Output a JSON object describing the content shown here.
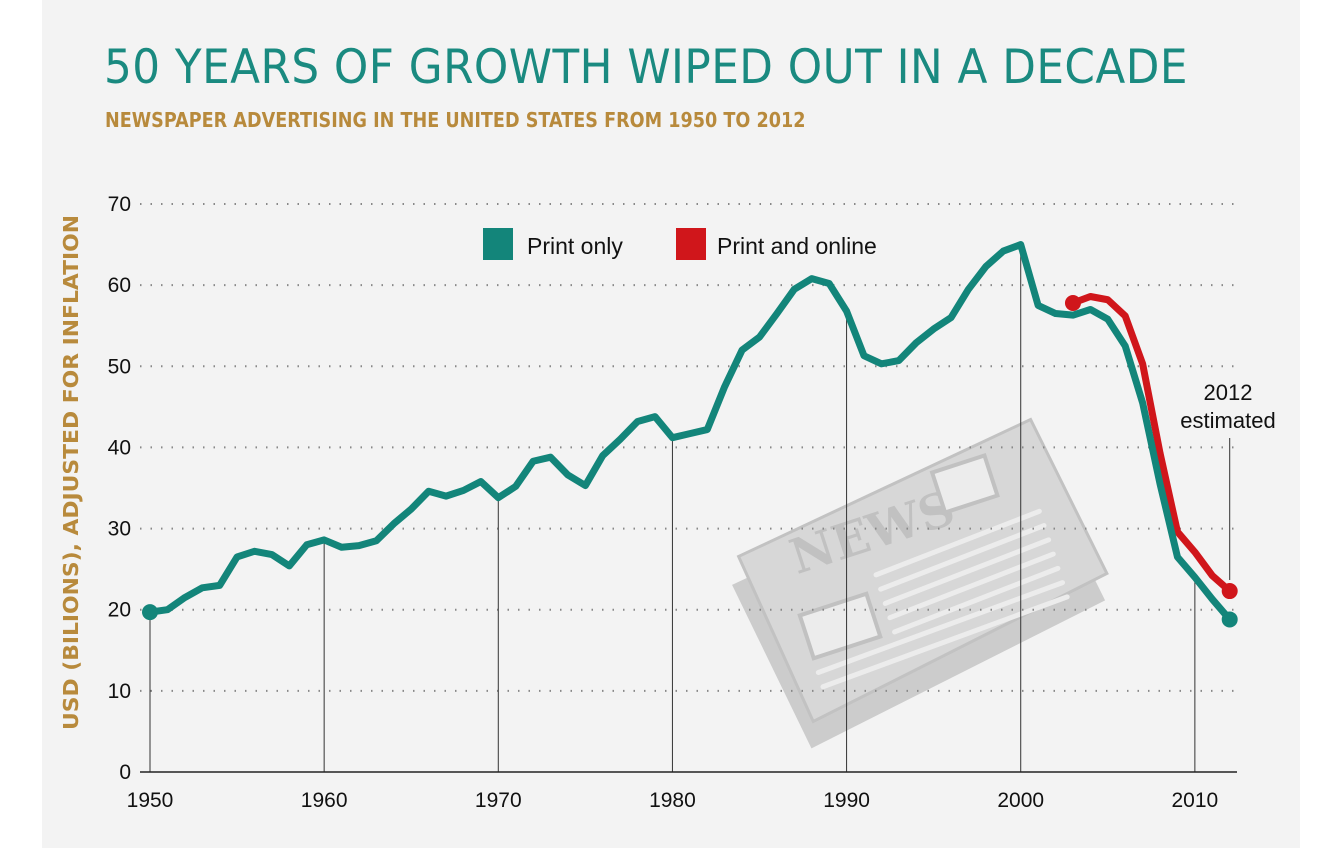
{
  "chart_data": {
    "type": "line",
    "title": "50 YEARS OF GROWTH WIPED OUT IN A DECADE",
    "subtitle": "NEWSPAPER ADVERTISING IN THE UNITED STATES FROM 1950 TO 2012",
    "xlabel": "",
    "ylabel": "USD (BILIONS), ADJUSTED FOR INFLATION",
    "xlim": [
      1950,
      2012
    ],
    "ylim": [
      0,
      70
    ],
    "x_ticks": [
      "1950",
      "1960",
      "1970",
      "1980",
      "1990",
      "2000",
      "2010"
    ],
    "y_ticks": [
      "0",
      "10",
      "20",
      "30",
      "40",
      "50",
      "60",
      "70"
    ],
    "grid": "horizontal dotted",
    "legend": "top-center",
    "annotation": {
      "line1": "2012",
      "line2": "estimated",
      "x": 2012
    },
    "illustration_text": "NEWS",
    "series": [
      {
        "name": "Print only",
        "color": "#13857a",
        "x": [
          1950,
          1951,
          1952,
          1953,
          1954,
          1955,
          1956,
          1957,
          1958,
          1959,
          1960,
          1961,
          1962,
          1963,
          1964,
          1965,
          1966,
          1967,
          1968,
          1969,
          1970,
          1971,
          1972,
          1973,
          1974,
          1975,
          1976,
          1977,
          1978,
          1979,
          1980,
          1981,
          1982,
          1983,
          1984,
          1985,
          1986,
          1987,
          1988,
          1989,
          1990,
          1991,
          1992,
          1993,
          1994,
          1995,
          1996,
          1997,
          1998,
          1999,
          2000,
          2001,
          2002,
          2003,
          2004,
          2005,
          2006,
          2007,
          2008,
          2009,
          2010,
          2011,
          2012
        ],
        "values": [
          19.7,
          20,
          21.5,
          22.7,
          23,
          26.5,
          27.2,
          26.8,
          25.4,
          28,
          28.6,
          27.7,
          27.9,
          28.5,
          30.6,
          32.4,
          34.6,
          34,
          34.7,
          35.8,
          33.8,
          35.2,
          38.3,
          38.8,
          36.6,
          35.3,
          39,
          41,
          43.2,
          43.8,
          41.2,
          41.7,
          42.2,
          47.5,
          52,
          53.6,
          56.5,
          59.5,
          60.8,
          60.2,
          56.8,
          51.3,
          50.3,
          50.7,
          52.9,
          54.6,
          56,
          59.5,
          62.3,
          64.2,
          65,
          57.5,
          56.5,
          56.3,
          57,
          55.8,
          52.5,
          45.5,
          35.5,
          26.5,
          24,
          21.3,
          18.8
        ]
      },
      {
        "name": "Print and online",
        "color": "#d0161b",
        "x": [
          2003,
          2004,
          2005,
          2006,
          2007,
          2008,
          2009,
          2010,
          2011,
          2012
        ],
        "values": [
          57.8,
          58.6,
          58.2,
          56.2,
          50.3,
          39.3,
          29.6,
          27.1,
          24.2,
          22.3
        ]
      }
    ]
  }
}
